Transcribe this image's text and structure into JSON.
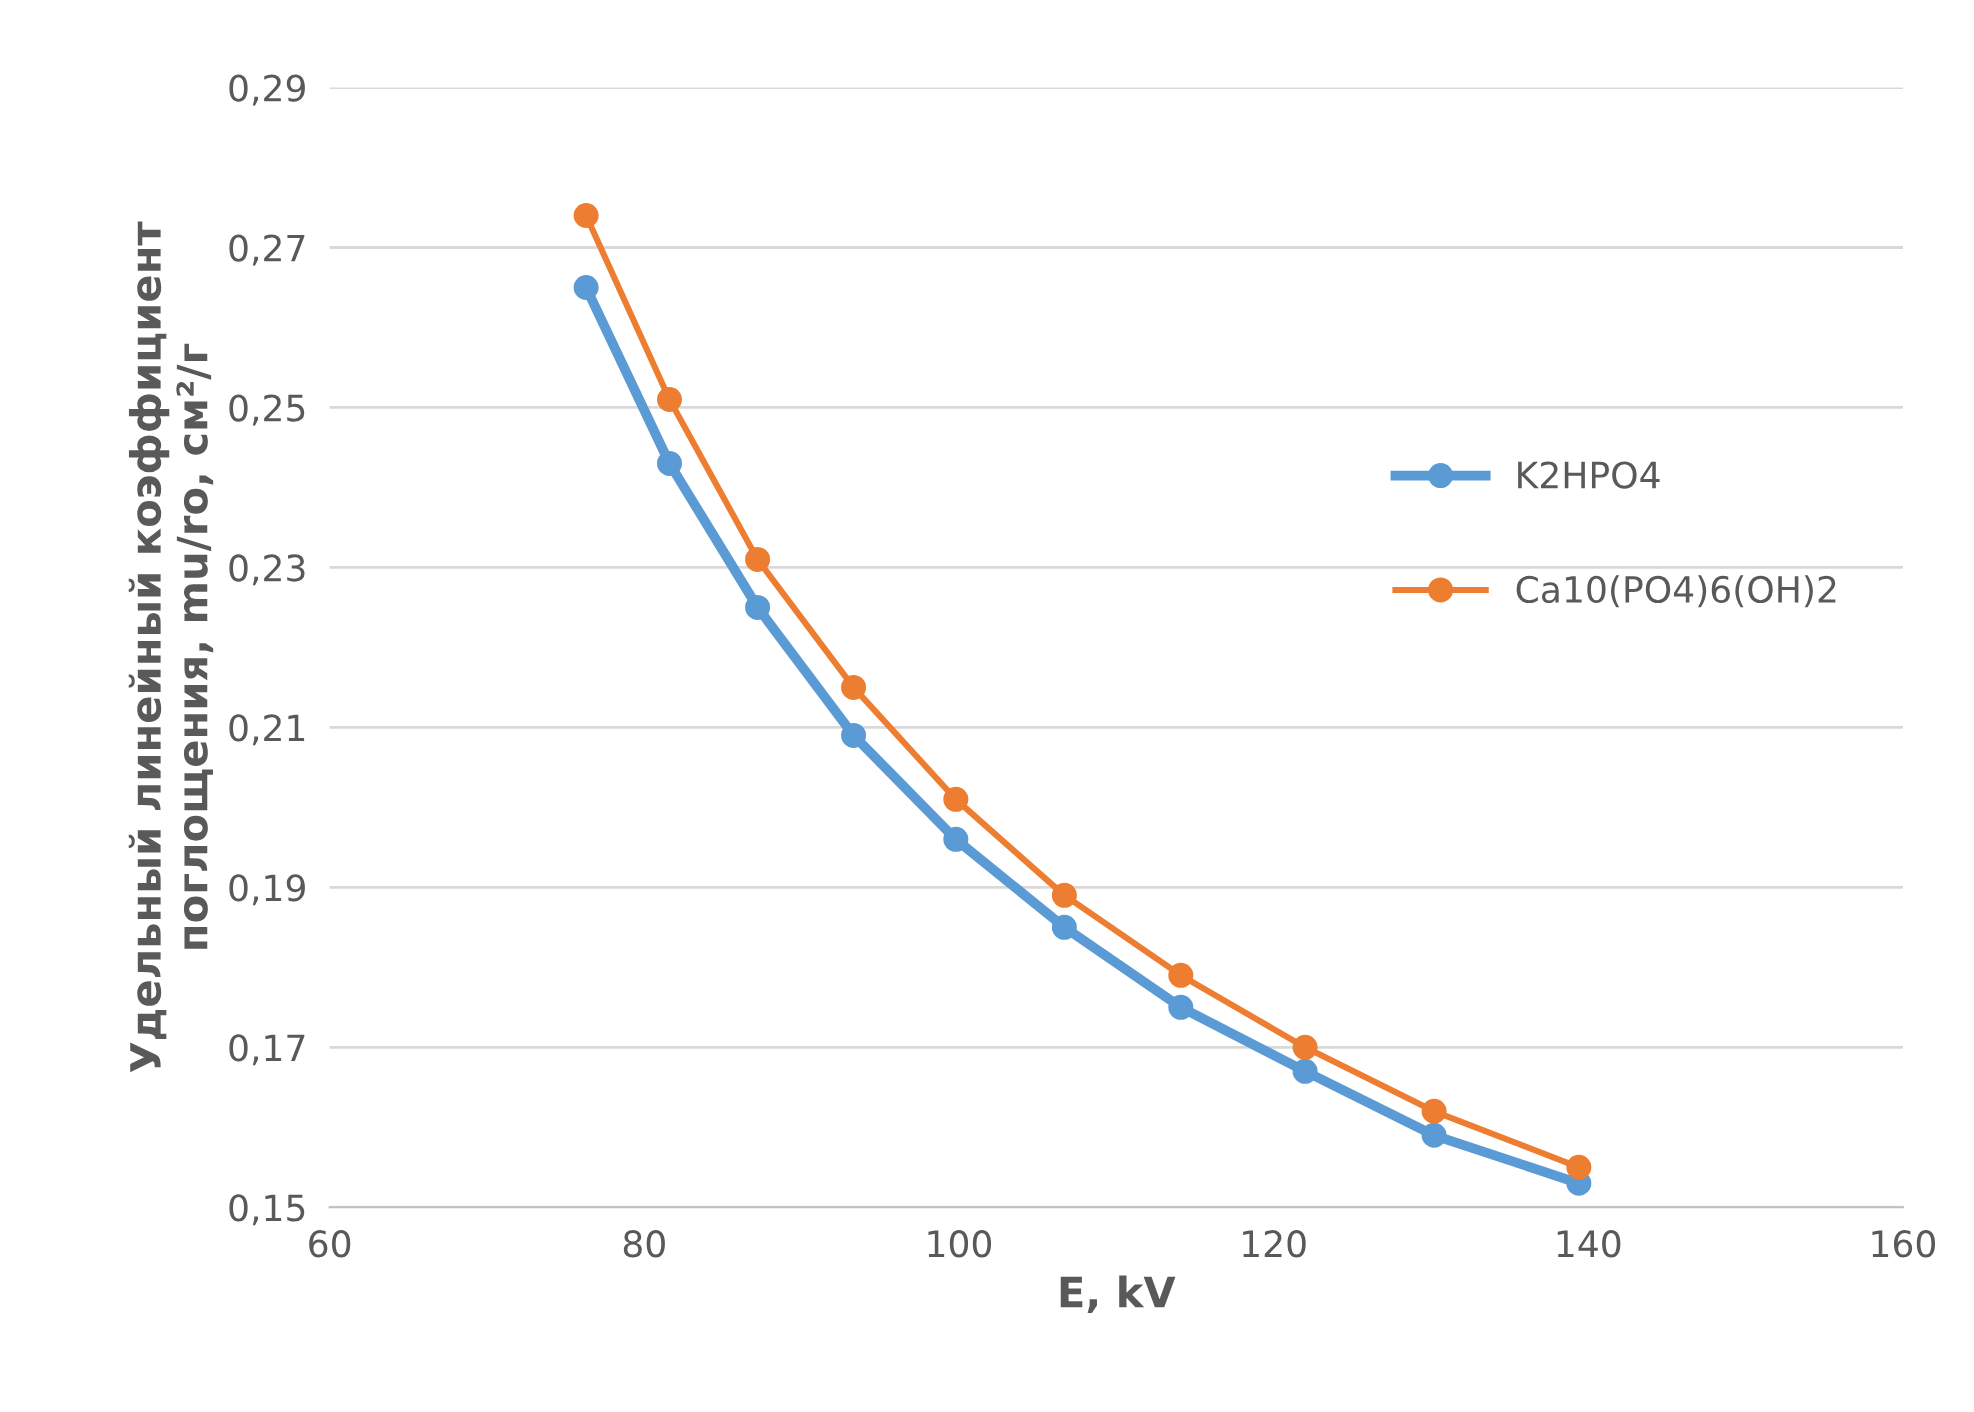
{
  "chart_data": {
    "type": "line",
    "xlabel": "E, kV",
    "ylabel": "Удельный линейный коэффициент\nпоглощения, mu/ro, см²/г",
    "x": [
      76.3,
      81.6,
      87.2,
      93.3,
      99.8,
      106.7,
      114.1,
      122.0,
      130.2,
      139.4
    ],
    "series": [
      {
        "name": "K2HPO4",
        "color": "#5b9bd5",
        "values": [
          0.265,
          0.243,
          0.225,
          0.209,
          0.196,
          0.185,
          0.175,
          0.167,
          0.159,
          0.153
        ]
      },
      {
        "name": "Ca10(PO4)6(OH)2",
        "color": "#ed7d31",
        "values": [
          0.274,
          0.251,
          0.231,
          0.215,
          0.201,
          0.189,
          0.179,
          0.17,
          0.162,
          0.155
        ]
      }
    ],
    "xlim": [
      60,
      160
    ],
    "xticks": [
      60,
      80,
      100,
      120,
      140,
      160
    ],
    "ylim": [
      0.15,
      0.29
    ],
    "yticks": [
      {
        "value": 0.15,
        "label": "0,15"
      },
      {
        "value": 0.17,
        "label": "0,17"
      },
      {
        "value": 0.19,
        "label": "0,19"
      },
      {
        "value": 0.21,
        "label": "0,21"
      },
      {
        "value": 0.23,
        "label": "0,23"
      },
      {
        "value": 0.25,
        "label": "0,25"
      },
      {
        "value": 0.27,
        "label": "0,27"
      },
      {
        "value": 0.29,
        "label": "0,29"
      }
    ],
    "grid": "y",
    "legend": "right",
    "marker": "circle",
    "line_style": "solid"
  }
}
